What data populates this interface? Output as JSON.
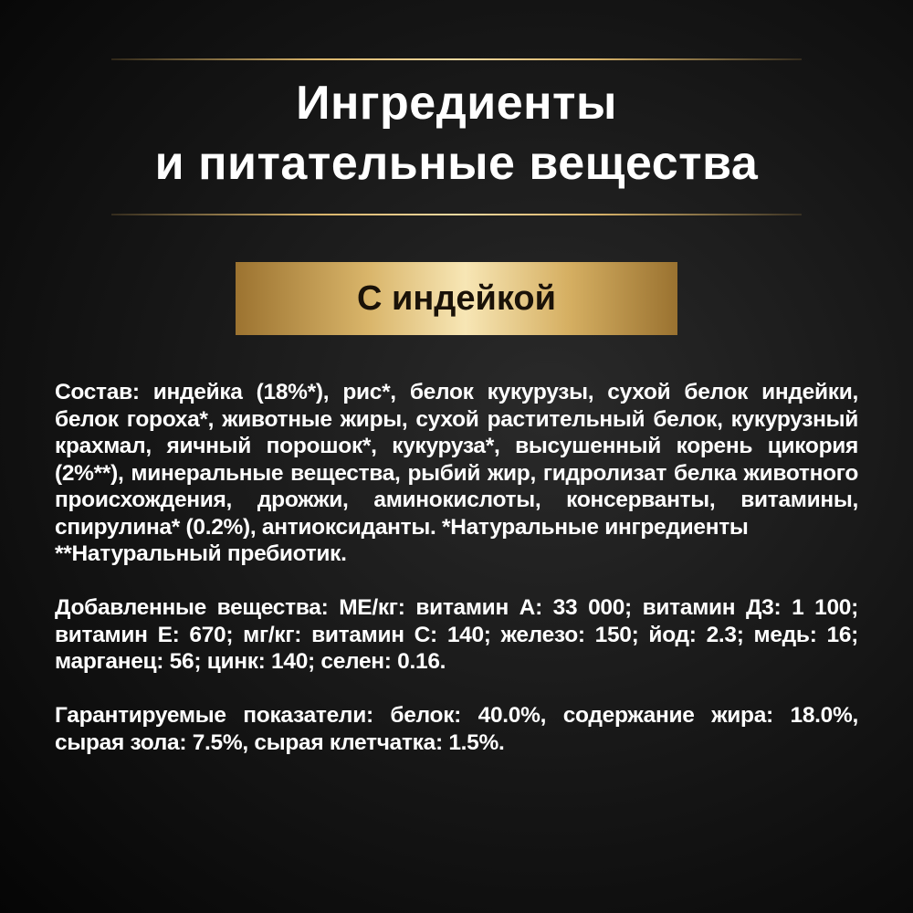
{
  "title": {
    "line1": "Ингредиенты",
    "line2": "и питательные вещества"
  },
  "variant_label": "С индейкой",
  "composition": {
    "text": "Состав: индейка (18%*), рис*, белок кукурузы, сухой белок индейки, белок гороха*, животные жиры, сухой растительный белок, кукурузный крахмал, яичный порошок*, кукуруза*, высушенный корень цикория (2%**), минеральные вещества, рыбий жир, гидролизат белка животного происхождения, дрожжи, аминокислоты, консерванты, витамины, спирулина* (0.2%), антиоксиданты. *Натуральные ингредиенты",
    "footnote": "**Натуральный пребиотик."
  },
  "additives": "Добавленные вещества: МЕ/кг: витамин А: 33 000; витамин Д3: 1 100; витамин Е: 670; мг/кг: витамин С: 140; железо: 150; йод: 2.3; медь: 16; марганец: 56; цинк: 140; селен: 0.16.",
  "guaranteed": "Гарантируемые показатели: белок: 40.0%, содержание жира: 18.0%, сырая зола: 7.5%, сырая клетчатка: 1.5%.",
  "colors": {
    "gold": "#d9b46a",
    "background": "#151515",
    "text": "#ffffff"
  }
}
